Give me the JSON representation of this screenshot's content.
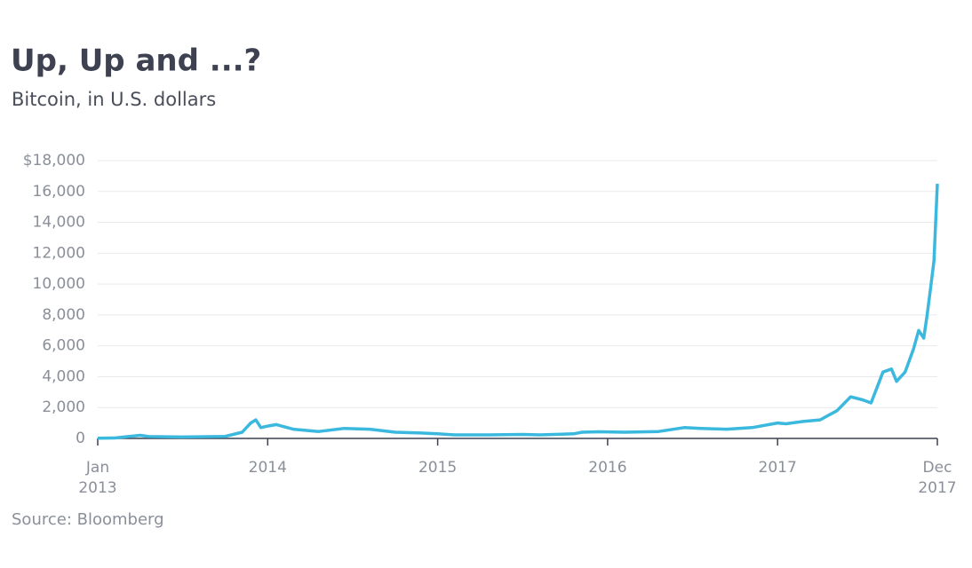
{
  "chart_data": {
    "type": "line",
    "title": "Up, Up and ...?",
    "subtitle": "Bitcoin, in U.S. dollars",
    "source": "Source: Bloomberg",
    "x": [
      2013.0,
      2013.1,
      2013.25,
      2013.3,
      2013.5,
      2013.75,
      2013.85,
      2013.9,
      2013.93,
      2013.96,
      2014.0,
      2014.05,
      2014.15,
      2014.3,
      2014.45,
      2014.6,
      2014.75,
      2014.9,
      2015.0,
      2015.1,
      2015.3,
      2015.5,
      2015.6,
      2015.8,
      2015.85,
      2015.95,
      2016.1,
      2016.3,
      2016.45,
      2016.55,
      2016.7,
      2016.85,
      2017.0,
      2017.05,
      2017.15,
      2017.25,
      2017.35,
      2017.43,
      2017.5,
      2017.55,
      2017.62,
      2017.67,
      2017.7,
      2017.75,
      2017.8,
      2017.83,
      2017.86,
      2017.88,
      2017.9,
      2017.92,
      2017.93,
      2017.94
    ],
    "values": [
      13,
      30,
      200,
      120,
      90,
      130,
      400,
      1000,
      1200,
      700,
      800,
      900,
      600,
      450,
      650,
      600,
      400,
      350,
      300,
      230,
      230,
      260,
      230,
      300,
      400,
      430,
      400,
      450,
      700,
      650,
      600,
      700,
      1000,
      950,
      1100,
      1200,
      1800,
      2700,
      2500,
      2300,
      4300,
      4500,
      3700,
      4300,
      5800,
      7000,
      6500,
      8000,
      9700,
      11500,
      14000,
      16500
    ],
    "color": "#3bb8de",
    "xlim": [
      2013.0,
      2017.94
    ],
    "xticks": [
      {
        "value": 2013,
        "label": "Jan 2013"
      },
      2014,
      2015,
      2016,
      2017,
      {
        "value": 2017.94,
        "label": "Dec 2017"
      }
    ],
    "ylim": [
      0,
      18000
    ],
    "yticks": [
      0,
      {
        "value": 2000,
        "label": "2,000"
      },
      {
        "value": 4000,
        "label": "4,000"
      },
      {
        "value": 6000,
        "label": "6,000"
      },
      {
        "value": 8000,
        "label": "8,000"
      },
      {
        "value": 10000,
        "label": "10,000"
      },
      {
        "value": 12000,
        "label": "12,000"
      },
      {
        "value": 14000,
        "label": "14,000"
      },
      {
        "value": 16000,
        "label": "16,000"
      },
      {
        "value": 18000,
        "label": "$18,000"
      }
    ],
    "grid": true
  }
}
